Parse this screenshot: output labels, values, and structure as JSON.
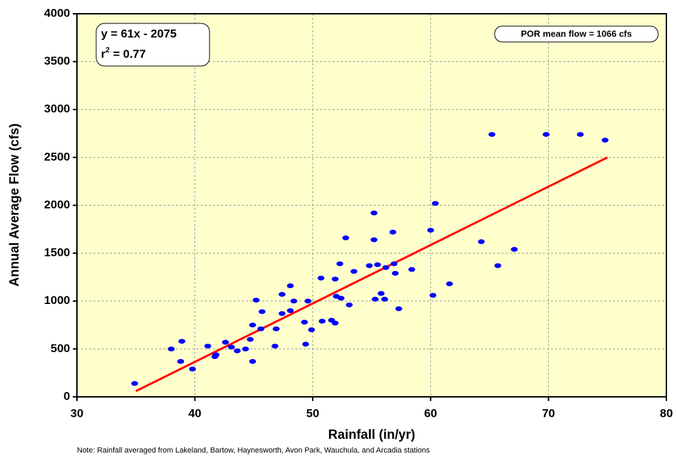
{
  "chart_data": {
    "type": "scatter",
    "x_label": "Rainfall (in/yr)",
    "y_label": "Annual Average Flow (cfs)",
    "note": "Note: Rainfall averaged from Lakeland, Bartow, Haynesworth, Avon Park, Wauchula, and Arcadia stations",
    "equation": "y = 61x - 2075",
    "r_squared": {
      "base": "r",
      "sup": "2",
      "rest": " = 0.77"
    },
    "mean_flow_label": "POR mean flow = 1066 cfs",
    "xlim": [
      30,
      80
    ],
    "xticks": [
      30,
      40,
      50,
      60,
      70,
      80
    ],
    "ylim": [
      0,
      4000
    ],
    "yticks": [
      0,
      500,
      1000,
      1500,
      2000,
      2500,
      3000,
      3500,
      4000
    ],
    "grid": true,
    "series": [
      {
        "color": "#0000ff",
        "x": [
          34.9,
          38.0,
          38.9,
          38.8,
          39.8,
          41.1,
          41.7,
          41.8,
          42.6,
          43.1,
          43.6,
          44.3,
          44.7,
          44.9,
          44.9,
          45.2,
          45.7,
          45.6,
          46.9,
          46.8,
          47.4,
          47.4,
          48.1,
          48.1,
          48.4,
          49.3,
          49.4,
          49.6,
          49.9,
          50.7,
          50.8,
          51.6,
          51.9,
          51.9,
          52.0,
          52.3,
          52.4,
          52.8,
          53.1,
          53.5,
          54.8,
          55.2,
          55.2,
          55.3,
          55.5,
          55.8,
          56.1,
          56.2,
          56.8,
          56.9,
          57.0,
          57.3,
          58.4,
          60.0,
          60.2,
          60.4,
          61.6,
          64.3,
          65.2,
          65.7,
          67.1,
          69.8,
          72.7,
          74.8
        ],
        "values": [
          140,
          500,
          580,
          370,
          290,
          530,
          420,
          440,
          570,
          520,
          480,
          500,
          600,
          370,
          750,
          1010,
          890,
          710,
          710,
          530,
          870,
          1070,
          1160,
          900,
          1000,
          780,
          550,
          1000,
          700,
          1240,
          790,
          800,
          1230,
          770,
          1050,
          1390,
          1030,
          1660,
          960,
          1310,
          1370,
          1920,
          1640,
          1020,
          1380,
          1080,
          1020,
          1350,
          1720,
          1390,
          1290,
          920,
          1330,
          1740,
          1060,
          2020,
          1180,
          1620,
          2740,
          1370,
          1540,
          2740,
          2740,
          2680
        ]
      }
    ],
    "trendline": {
      "color": "#ff0000",
      "x": [
        35,
        75
      ],
      "values": [
        60,
        2500
      ]
    }
  }
}
